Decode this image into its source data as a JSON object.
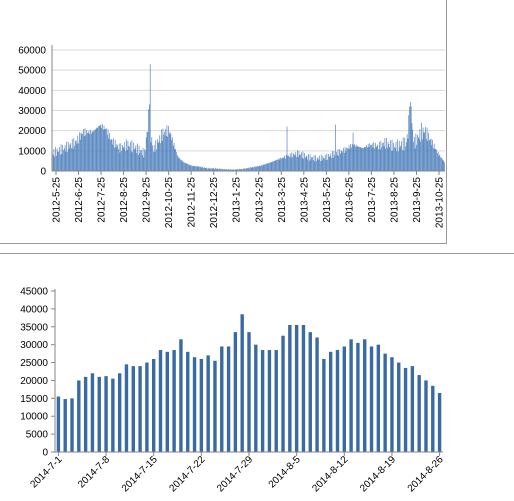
{
  "colors": {
    "bar": "#4f81bd",
    "bar_dark": "#3a6aa3",
    "axis": "#868686",
    "grid": "#d9d9d9"
  },
  "chart_data": [
    {
      "type": "bar",
      "title": "",
      "xlabel": "",
      "ylabel": "",
      "ylim": [
        0,
        60000
      ],
      "yticks": [
        "0",
        "10000",
        "20000",
        "30000",
        "40000",
        "50000",
        "60000"
      ],
      "x_tick_labels": [
        "2012-5-25",
        "2012-6-25",
        "2012-7-25",
        "2012-8-25",
        "2012-9-25",
        "2012-10-25",
        "2012-11-25",
        "2012-12-25",
        "2013-1-25",
        "2013-2-25",
        "2013-3-25",
        "2013-4-25",
        "2013-5-25",
        "2013-6-25",
        "2013-7-25",
        "2013-8-25",
        "2013-9-25",
        "2013-10-25"
      ],
      "grid": true,
      "keypoints": [
        [
          0,
          10000
        ],
        [
          10,
          12000
        ],
        [
          20,
          14000
        ],
        [
          31,
          17000
        ],
        [
          38,
          22000
        ],
        [
          50,
          22000
        ],
        [
          60,
          26000
        ],
        [
          67,
          24000
        ],
        [
          75,
          17000
        ],
        [
          85,
          13000
        ],
        [
          95,
          15000
        ],
        [
          105,
          13000
        ],
        [
          116,
          10000
        ],
        [
          122,
          33000
        ],
        [
          123,
          53000
        ],
        [
          124,
          20000
        ],
        [
          127,
          12000
        ],
        [
          140,
          22000
        ],
        [
          147,
          23000
        ],
        [
          152,
          16000
        ],
        [
          158,
          8000
        ],
        [
          165,
          5000
        ],
        [
          175,
          3000
        ],
        [
          185,
          2500
        ],
        [
          195,
          1500
        ],
        [
          204,
          1500
        ],
        [
          215,
          1000
        ],
        [
          228,
          800
        ],
        [
          240,
          1200
        ],
        [
          250,
          2000
        ],
        [
          262,
          3000
        ],
        [
          275,
          5000
        ],
        [
          286,
          7000
        ],
        [
          300,
          9000
        ],
        [
          310,
          10000
        ],
        [
          320,
          8000
        ],
        [
          333,
          7000
        ],
        [
          345,
          8000
        ],
        [
          356,
          10000
        ],
        [
          368,
          12000
        ],
        [
          378,
          15000
        ],
        [
          390,
          13000
        ],
        [
          400,
          15000
        ],
        [
          410,
          14000
        ],
        [
          418,
          16000
        ],
        [
          430,
          14000
        ],
        [
          440,
          15000
        ],
        [
          445,
          16000
        ],
        [
          450,
          32000
        ],
        [
          455,
          16000
        ],
        [
          461,
          20000
        ],
        [
          468,
          23000
        ],
        [
          475,
          18000
        ],
        [
          485,
          10000
        ],
        [
          493,
          5000
        ]
      ],
      "spikes": [
        [
          123,
          53000
        ],
        [
          122,
          33000
        ],
        [
          449,
          32000
        ],
        [
          451,
          32000
        ],
        [
          464,
          24000
        ],
        [
          356,
          23000
        ],
        [
          295,
          22000
        ],
        [
          378,
          19000
        ]
      ]
    },
    {
      "type": "bar",
      "title": "",
      "xlabel": "",
      "ylabel": "",
      "ylim": [
        0,
        45000
      ],
      "yticks": [
        "0",
        "5000",
        "10000",
        "15000",
        "20000",
        "25000",
        "30000",
        "35000",
        "40000",
        "45000"
      ],
      "x_tick_labels": [
        "2014-7-1",
        "2014-7-8",
        "2014-7-15",
        "2014-7-22",
        "2014-7-29",
        "2014-8-5",
        "2014-8-12",
        "2014-8-19",
        "2014-8-26"
      ],
      "categories": [
        "2014-7-1",
        "2014-7-2",
        "2014-7-3",
        "2014-7-4",
        "2014-7-5",
        "2014-7-6",
        "2014-7-7",
        "2014-7-8",
        "2014-7-9",
        "2014-7-10",
        "2014-7-11",
        "2014-7-12",
        "2014-7-13",
        "2014-7-14",
        "2014-7-15",
        "2014-7-16",
        "2014-7-17",
        "2014-7-18",
        "2014-7-19",
        "2014-7-20",
        "2014-7-21",
        "2014-7-22",
        "2014-7-23",
        "2014-7-24",
        "2014-7-25",
        "2014-7-26",
        "2014-7-27",
        "2014-7-28",
        "2014-7-29",
        "2014-7-30",
        "2014-7-31",
        "2014-8-1",
        "2014-8-2",
        "2014-8-3",
        "2014-8-4",
        "2014-8-5",
        "2014-8-6",
        "2014-8-7",
        "2014-8-8",
        "2014-8-9",
        "2014-8-10",
        "2014-8-11",
        "2014-8-12",
        "2014-8-13",
        "2014-8-14",
        "2014-8-15",
        "2014-8-16",
        "2014-8-17",
        "2014-8-18",
        "2014-8-19",
        "2014-8-20",
        "2014-8-21",
        "2014-8-22",
        "2014-8-23",
        "2014-8-24",
        "2014-8-25",
        "2014-8-26"
      ],
      "values": [
        15500,
        14800,
        15000,
        20000,
        21000,
        22000,
        21000,
        21200,
        20500,
        22000,
        24500,
        24000,
        24000,
        25000,
        26000,
        28500,
        28000,
        28500,
        31500,
        28000,
        26500,
        26000,
        27000,
        25500,
        29500,
        29500,
        33500,
        38500,
        33500,
        30000,
        28500,
        28500,
        28500,
        32500,
        35500,
        35500,
        35500,
        33500,
        32000,
        26000,
        28000,
        28500,
        29500,
        31500,
        30500,
        31500,
        29500,
        30000,
        27500,
        26500,
        25000,
        23500,
        24000,
        21500,
        20000,
        18500,
        16500
      ],
      "grid": false
    }
  ]
}
